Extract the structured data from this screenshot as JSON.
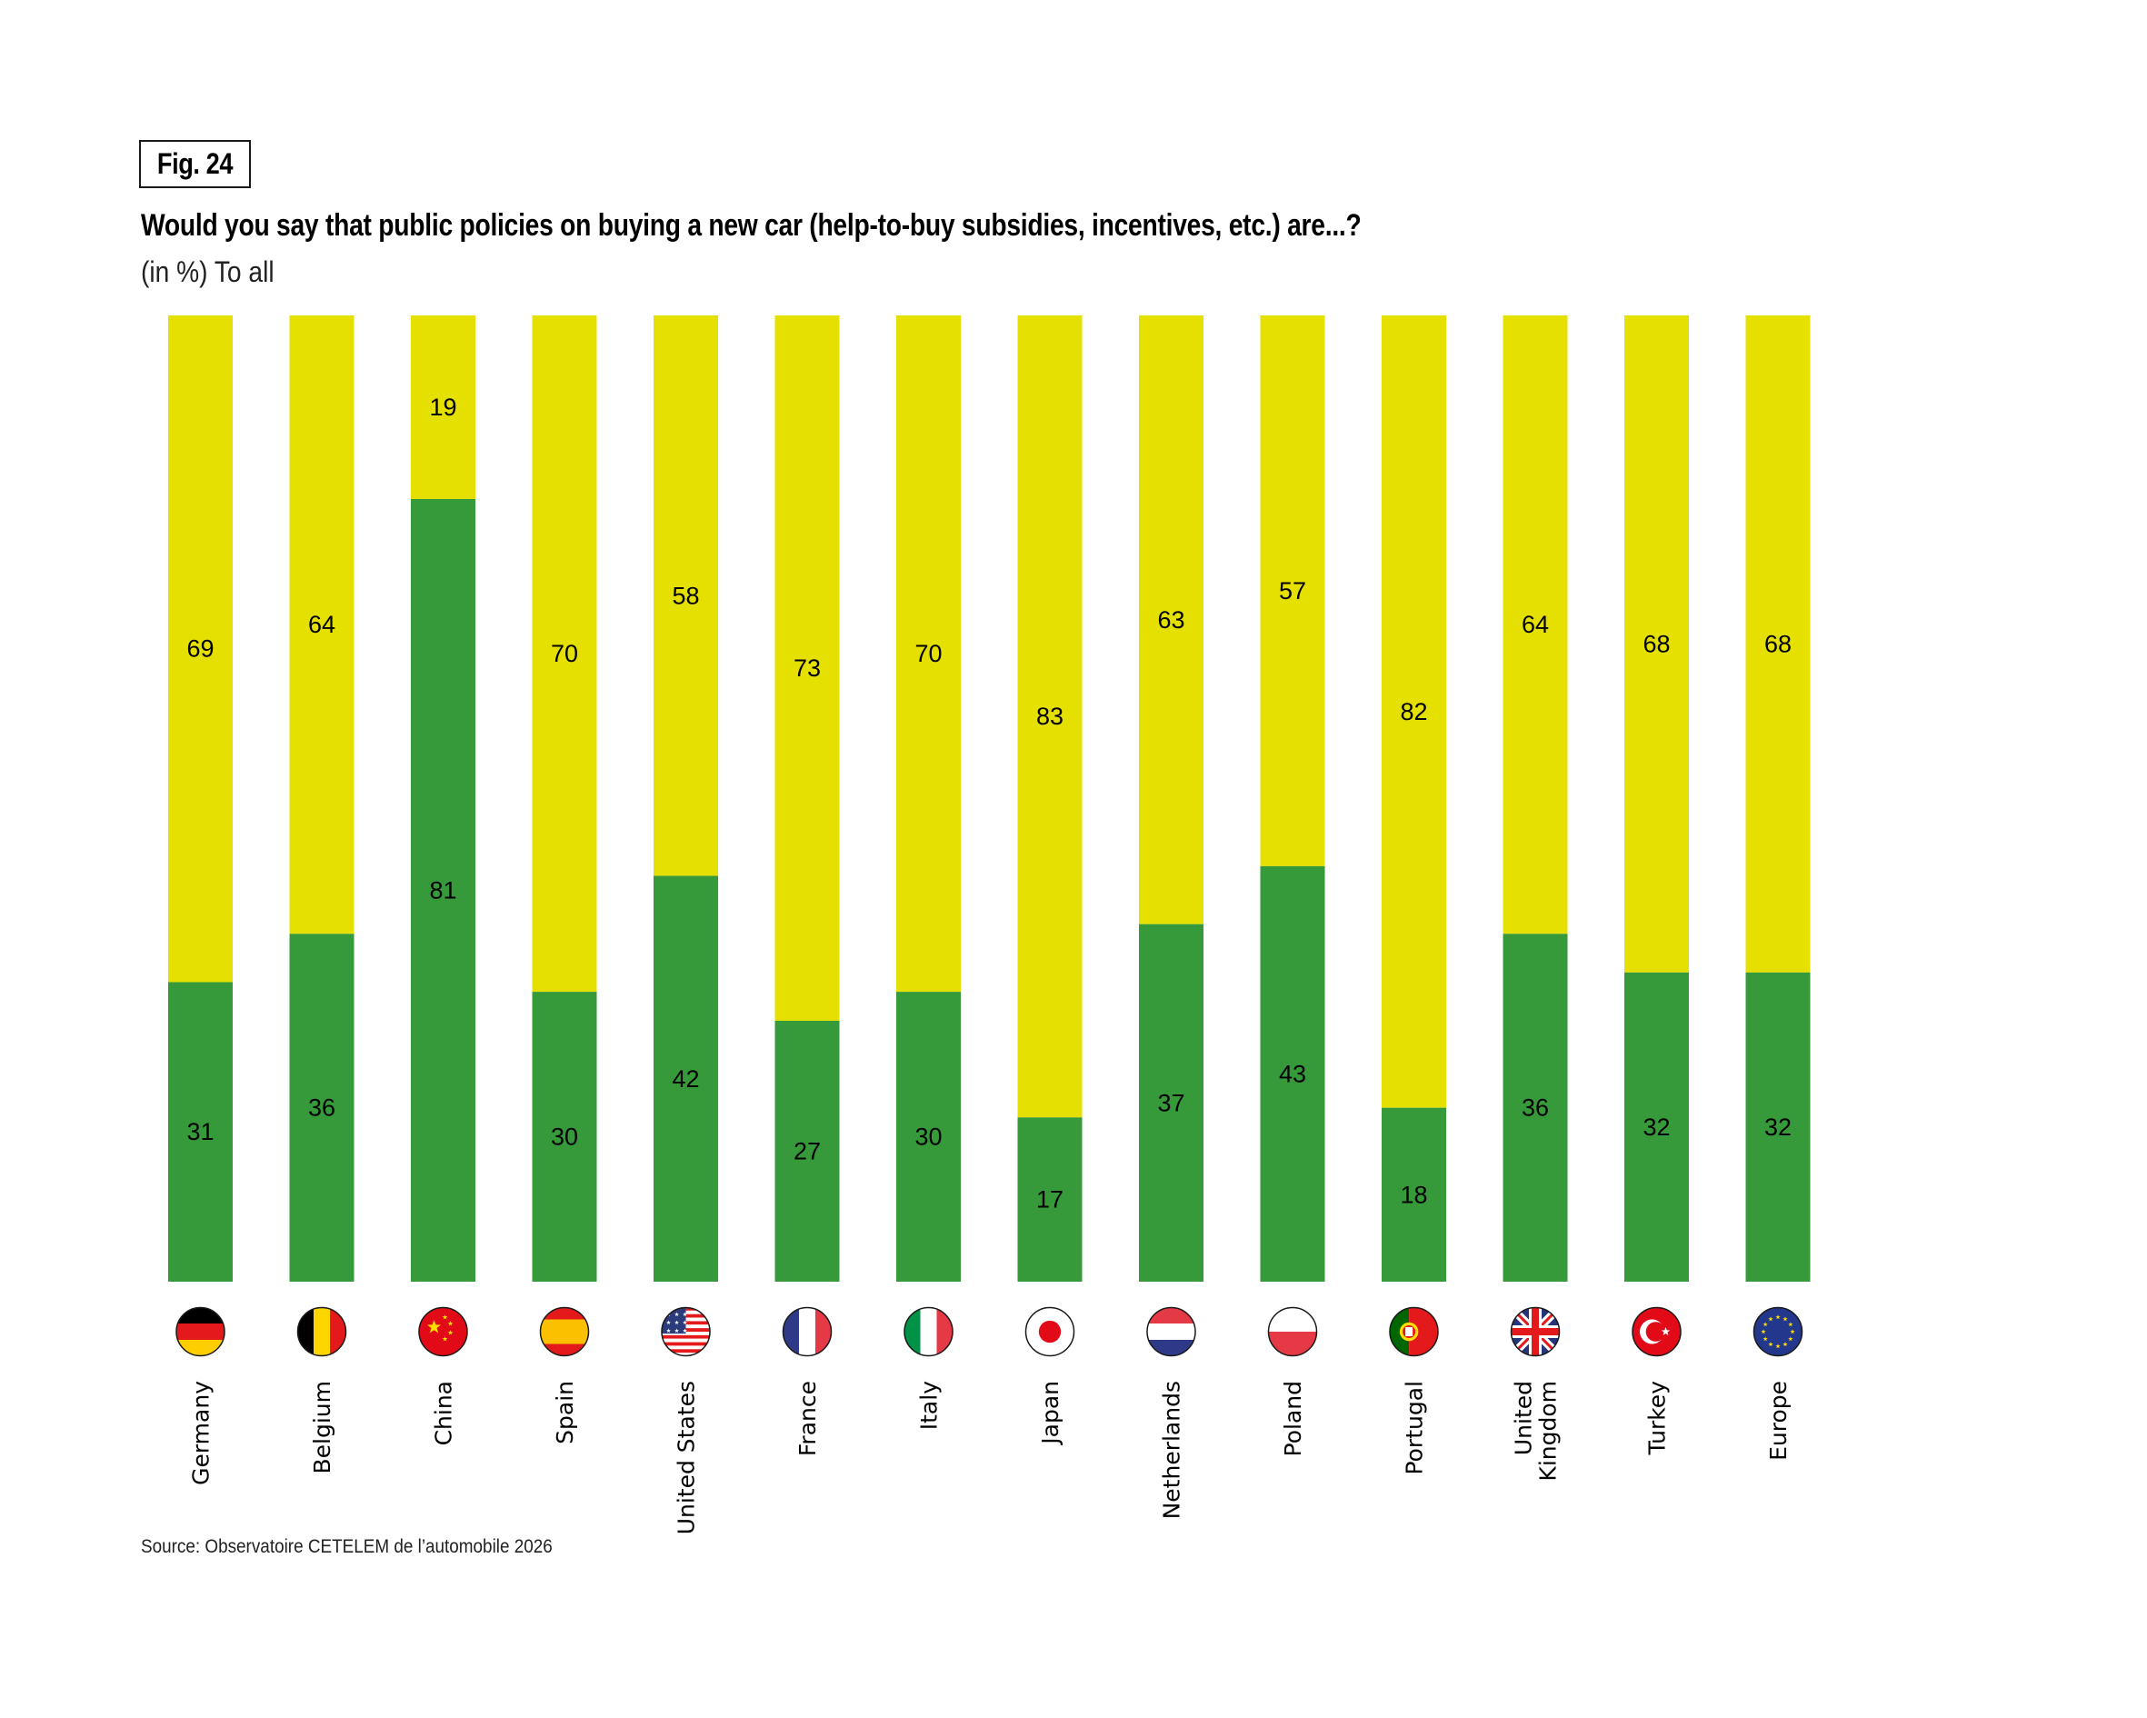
{
  "figure_label": "Fig. 24",
  "title": "Would you say that public policies on buying a new car (help-to-buy subsidies, incentives, etc.) are...?",
  "subtitle": "(in %) To all",
  "source": "Source: Observatoire CETELEM de l’automobile 2026",
  "colors": {
    "upper_segment": "#E6E000",
    "lower_segment": "#369A3A"
  },
  "chart_data": {
    "type": "bar",
    "stacked": true,
    "percent_stacked": true,
    "title": "Would you say that public policies on buying a new car (help-to-buy subsidies, incentives, etc.) are...?",
    "subtitle": "(in %) To all",
    "xlabel": "",
    "ylabel": "",
    "ylim": [
      0,
      100
    ],
    "grid": false,
    "legend": "none",
    "categories": [
      "Germany",
      "Belgium",
      "China",
      "Spain",
      "United States",
      "France",
      "Italy",
      "Japan",
      "Netherlands",
      "Poland",
      "Portugal",
      "United Kingdom",
      "Turkey",
      "Europe"
    ],
    "category_labels": [
      [
        "Germany"
      ],
      [
        "Belgium"
      ],
      [
        "China"
      ],
      [
        "Spain"
      ],
      [
        "United States"
      ],
      [
        "France"
      ],
      [
        "Italy"
      ],
      [
        "Japan"
      ],
      [
        "Netherlands"
      ],
      [
        "Poland"
      ],
      [
        "Portugal"
      ],
      [
        "United",
        "Kingdom"
      ],
      [
        "Turkey"
      ],
      [
        "Europe"
      ]
    ],
    "flags": [
      "flag-germany",
      "flag-belgium",
      "flag-china",
      "flag-spain",
      "flag-united-states",
      "flag-france",
      "flag-italy",
      "flag-japan",
      "flag-netherlands",
      "flag-poland",
      "flag-portugal",
      "flag-united-kingdom",
      "flag-turkey",
      "flag-europe"
    ],
    "series": [
      {
        "name": "green (bottom)",
        "color": "#369A3A",
        "values": [
          31,
          36,
          81,
          30,
          42,
          27,
          30,
          17,
          37,
          43,
          18,
          36,
          32,
          32
        ]
      },
      {
        "name": "yellow (top)",
        "color": "#E6E000",
        "values": [
          69,
          64,
          19,
          70,
          58,
          73,
          70,
          83,
          63,
          57,
          82,
          64,
          68,
          68
        ]
      }
    ],
    "source": "Source: Observatoire CETELEM de l’automobile 2026"
  }
}
